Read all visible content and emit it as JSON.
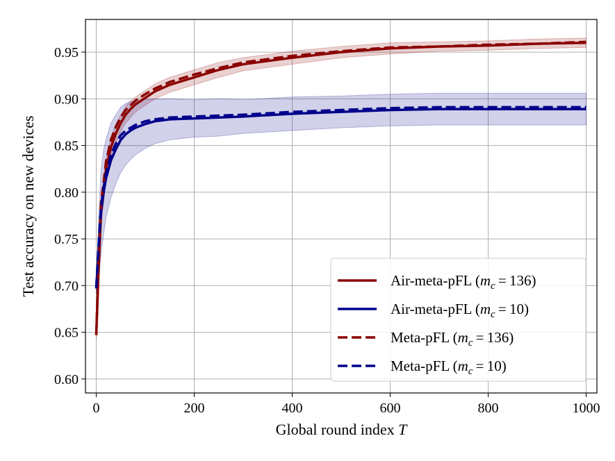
{
  "chart_data": {
    "type": "line",
    "xlabel": "Global round index",
    "xlabel_symbol": "T",
    "ylabel": "Test accuracy on new devices",
    "xlim": [
      -22,
      1022
    ],
    "ylim": [
      0.585,
      0.985
    ],
    "xticks": [
      0,
      200,
      400,
      600,
      800,
      1000
    ],
    "yticks": [
      0.6,
      0.65,
      0.7,
      0.75,
      0.8,
      0.85,
      0.9,
      0.95
    ],
    "grid": true,
    "legend_position": "bottom-right",
    "x": [
      0,
      5,
      10,
      15,
      20,
      30,
      40,
      50,
      60,
      70,
      80,
      100,
      120,
      150,
      200,
      250,
      300,
      400,
      500,
      600,
      700,
      800,
      900,
      1000
    ],
    "series": [
      {
        "name": "Air-meta-pFL",
        "mc": "136",
        "color": "#8b0000",
        "style": "solid",
        "values": [
          0.647,
          0.72,
          0.78,
          0.8,
          0.825,
          0.848,
          0.863,
          0.874,
          0.883,
          0.889,
          0.894,
          0.901,
          0.908,
          0.915,
          0.923,
          0.931,
          0.937,
          0.944,
          0.95,
          0.954,
          0.956,
          0.957,
          0.959,
          0.96
        ],
        "band": [
          0.004,
          0.01,
          0.012,
          0.012,
          0.011,
          0.01,
          0.01,
          0.009,
          0.009,
          0.009,
          0.008,
          0.008,
          0.008,
          0.008,
          0.008,
          0.008,
          0.007,
          0.007,
          0.006,
          0.006,
          0.005,
          0.005,
          0.005,
          0.005
        ]
      },
      {
        "name": "Air-meta-pFL",
        "mc": "10",
        "color": "#00008b",
        "style": "solid",
        "values": [
          0.697,
          0.74,
          0.78,
          0.8,
          0.815,
          0.834,
          0.846,
          0.856,
          0.862,
          0.866,
          0.869,
          0.873,
          0.876,
          0.878,
          0.879,
          0.88,
          0.881,
          0.884,
          0.886,
          0.888,
          0.889,
          0.889,
          0.889,
          0.889
        ],
        "band": [
          0.006,
          0.035,
          0.045,
          0.045,
          0.042,
          0.04,
          0.037,
          0.035,
          0.033,
          0.031,
          0.029,
          0.026,
          0.024,
          0.022,
          0.02,
          0.02,
          0.018,
          0.018,
          0.017,
          0.017,
          0.017,
          0.017,
          0.017,
          0.017
        ]
      },
      {
        "name": "Meta-pFL",
        "mc": "136",
        "color": "#8b0000",
        "style": "dashed",
        "values": [
          0.647,
          0.73,
          0.79,
          0.81,
          0.833,
          0.856,
          0.87,
          0.88,
          0.888,
          0.893,
          0.898,
          0.905,
          0.911,
          0.918,
          0.926,
          0.933,
          0.939,
          0.946,
          0.951,
          0.955,
          0.956,
          0.958,
          0.959,
          0.961
        ],
        "band": []
      },
      {
        "name": "Meta-pFL",
        "mc": "10",
        "color": "#00008b",
        "style": "dashed",
        "values": [
          0.697,
          0.745,
          0.785,
          0.805,
          0.82,
          0.84,
          0.852,
          0.861,
          0.866,
          0.869,
          0.872,
          0.876,
          0.878,
          0.88,
          0.881,
          0.882,
          0.883,
          0.886,
          0.888,
          0.89,
          0.891,
          0.891,
          0.891,
          0.891
        ],
        "band": []
      }
    ]
  }
}
